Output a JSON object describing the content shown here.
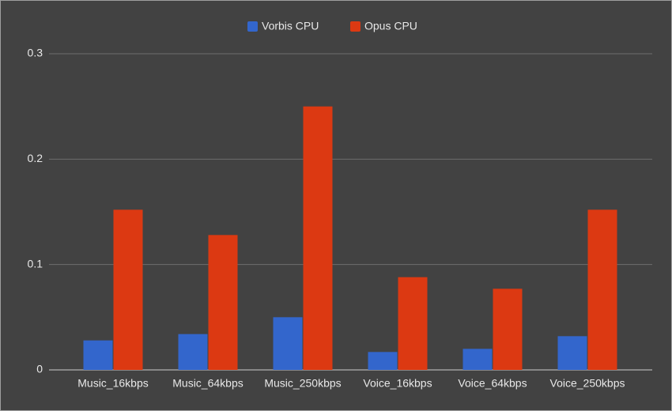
{
  "chart_data": {
    "type": "bar",
    "categories": [
      "Music_16kbps",
      "Music_64kbps",
      "Music_250kbps",
      "Voice_16kbps",
      "Voice_64kbps",
      "Voice_250kbps"
    ],
    "series": [
      {
        "name": "Vorbis CPU",
        "color": "#3366cc",
        "values": [
          0.028,
          0.034,
          0.05,
          0.017,
          0.02,
          0.032
        ]
      },
      {
        "name": "Opus CPU",
        "color": "#dc3912",
        "values": [
          0.152,
          0.128,
          0.25,
          0.088,
          0.077,
          0.152
        ]
      }
    ],
    "ylim": [
      0,
      0.3
    ],
    "yticks": [
      0,
      0.1,
      0.2,
      0.3
    ],
    "grid": true,
    "legend": "top"
  }
}
